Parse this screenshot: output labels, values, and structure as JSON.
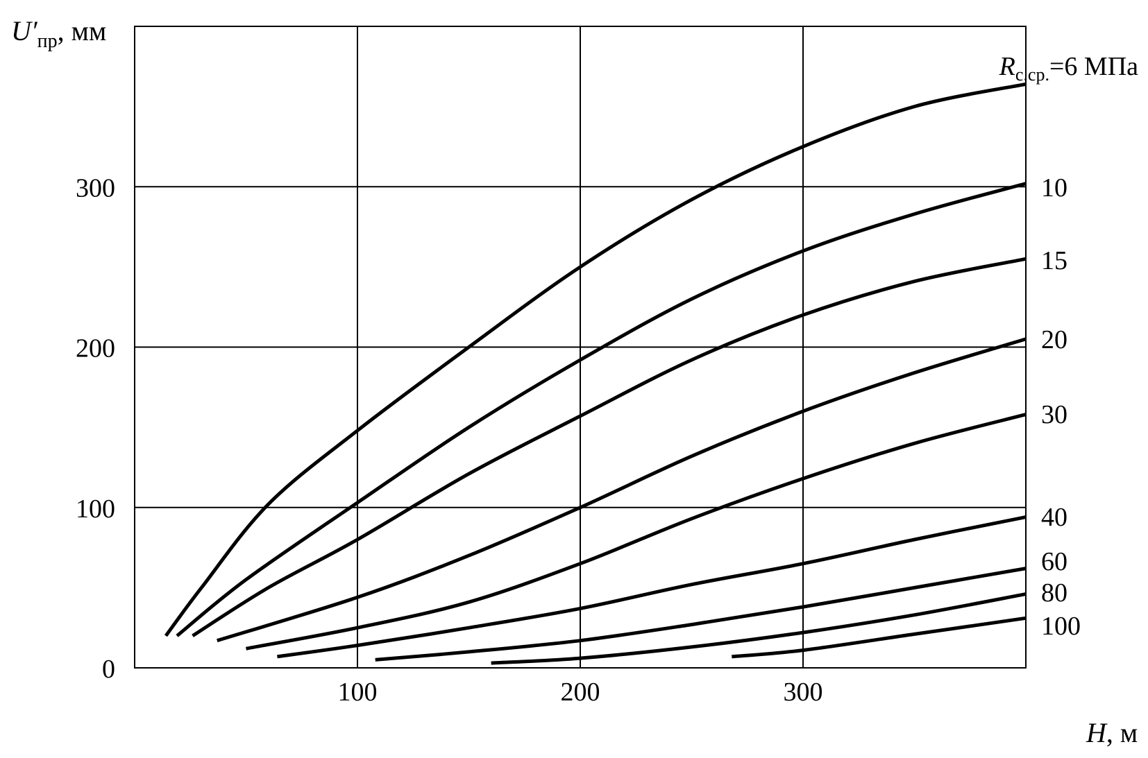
{
  "chart_data": {
    "type": "line",
    "xlabel": "H, м",
    "xlabel_var": "H",
    "xlabel_unit": ", м",
    "ylabel": "U′пр, мм",
    "ylabel_var": "U′",
    "ylabel_sub": "пр",
    "ylabel_unit": ", мм",
    "xlim": [
      0,
      400
    ],
    "ylim": [
      0,
      400
    ],
    "xticks": [
      100,
      200,
      300
    ],
    "yticks": [
      0,
      100,
      200,
      300
    ],
    "grid": true,
    "legend_title_var": "R",
    "legend_title_sub": "с.ср.",
    "legend_title_eq": "=6 МПа",
    "series": [
      {
        "name": "6",
        "x": [
          14,
          30,
          60,
          100,
          150,
          200,
          250,
          300,
          350,
          400
        ],
        "y": [
          20,
          50,
          102,
          148,
          200,
          250,
          292,
          325,
          350,
          364
        ]
      },
      {
        "name": "10",
        "x": [
          19,
          50,
          100,
          150,
          200,
          250,
          300,
          350,
          400
        ],
        "y": [
          20,
          55,
          103,
          150,
          192,
          230,
          260,
          283,
          302
        ]
      },
      {
        "name": "15",
        "x": [
          26,
          60,
          100,
          150,
          200,
          250,
          300,
          350,
          400
        ],
        "y": [
          20,
          50,
          80,
          121,
          157,
          192,
          220,
          241,
          255
        ]
      },
      {
        "name": "20",
        "x": [
          37,
          100,
          150,
          200,
          250,
          300,
          350,
          400
        ],
        "y": [
          17,
          44,
          70,
          100,
          132,
          160,
          184,
          205
        ]
      },
      {
        "name": "30",
        "x": [
          50,
          100,
          150,
          200,
          250,
          300,
          350,
          400
        ],
        "y": [
          12,
          25,
          41,
          65,
          93,
          118,
          140,
          158
        ]
      },
      {
        "name": "40",
        "x": [
          64,
          100,
          150,
          200,
          250,
          300,
          350,
          400
        ],
        "y": [
          7,
          14,
          25,
          37,
          52,
          65,
          80,
          94
        ]
      },
      {
        "name": "60",
        "x": [
          108,
          150,
          200,
          250,
          300,
          350,
          400
        ],
        "y": [
          5,
          10,
          17,
          27,
          38,
          50,
          62
        ]
      },
      {
        "name": "80",
        "x": [
          160,
          200,
          250,
          300,
          350,
          400
        ],
        "y": [
          3,
          6,
          13,
          22,
          33,
          46
        ]
      },
      {
        "name": "100",
        "x": [
          268,
          300,
          350,
          400
        ],
        "y": [
          7,
          11,
          21,
          31
        ]
      }
    ]
  }
}
